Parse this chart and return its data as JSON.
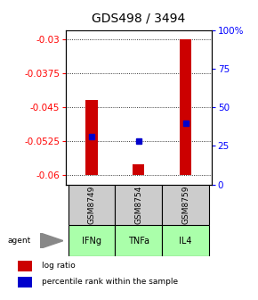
{
  "title": "GDS498 / 3494",
  "samples": [
    "GSM8749",
    "GSM8754",
    "GSM8759"
  ],
  "agents": [
    "IFNg",
    "TNFa",
    "IL4"
  ],
  "bar_tops": [
    -0.0435,
    -0.0575,
    -0.03
  ],
  "bar_bottom": -0.06,
  "percentile_values": [
    -0.0515,
    -0.0525,
    -0.0485
  ],
  "ylim_left": [
    -0.062,
    -0.028
  ],
  "yticks_left": [
    -0.06,
    -0.0525,
    -0.045,
    -0.0375,
    -0.03
  ],
  "ytick_labels_left": [
    "-0.06",
    "-0.0525",
    "-0.045",
    "-0.0375",
    "-0.03"
  ],
  "yticks_right": [
    0,
    25,
    50,
    75,
    100
  ],
  "ytick_labels_right": [
    "0",
    "25",
    "50",
    "75",
    "100%"
  ],
  "bar_color": "#cc0000",
  "percentile_color": "#0000cc",
  "agent_bg_color": "#aaffaa",
  "sample_box_color": "#cccccc",
  "title_fontsize": 10,
  "tick_fontsize": 7.5,
  "legend_fontsize": 6.5,
  "bar_width": 0.25
}
